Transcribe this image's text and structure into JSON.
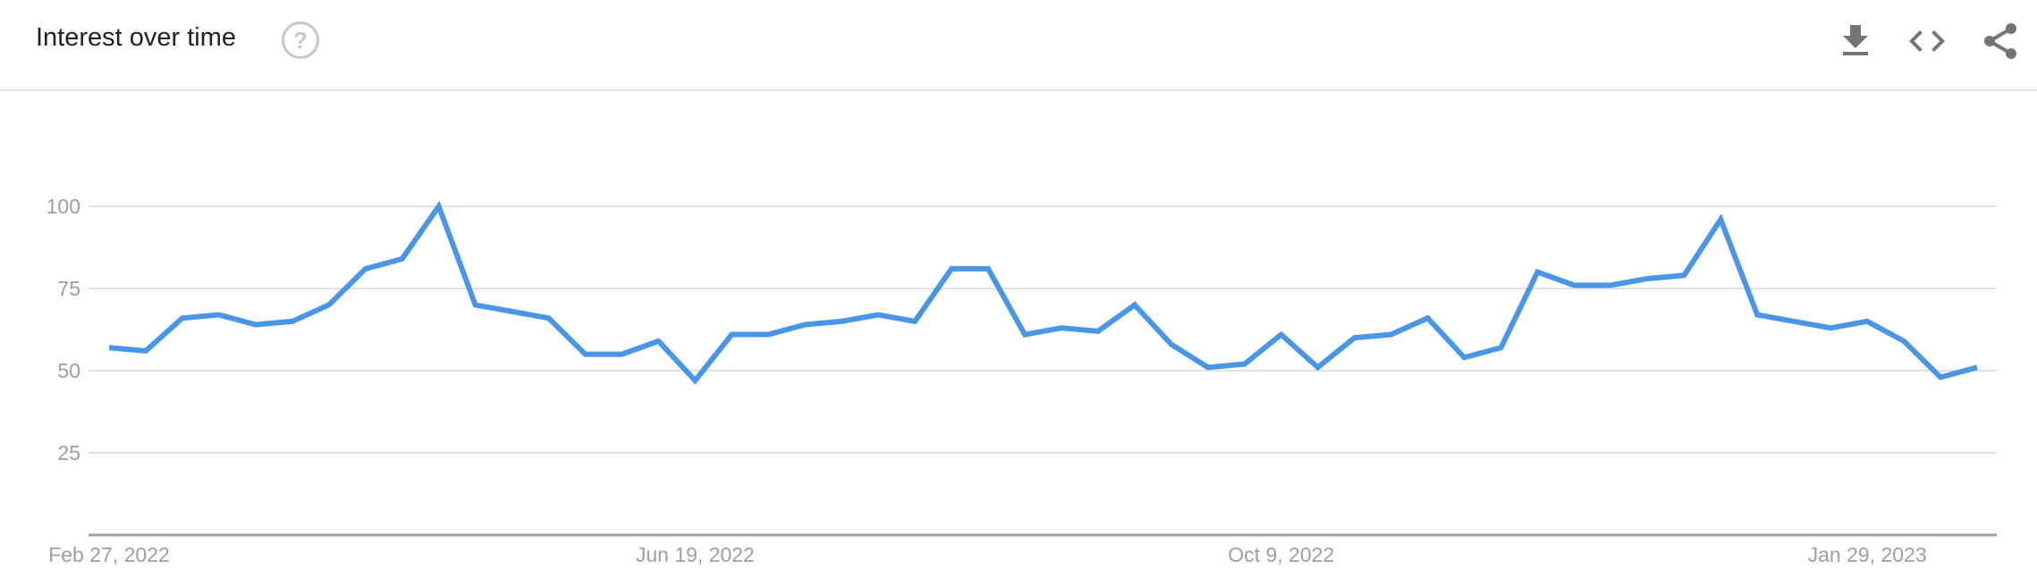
{
  "header": {
    "title": "Interest over time",
    "help_icon": "help-circle-icon",
    "actions": [
      {
        "name": "download-csv",
        "icon": "download-icon"
      },
      {
        "name": "embed",
        "icon": "code-icon"
      },
      {
        "name": "share",
        "icon": "share-icon"
      }
    ]
  },
  "colors": {
    "line": "#4a96e6",
    "grid": "#e0e0e0",
    "axis": "#9e9e9e",
    "text": "#212121",
    "icon": "#757575"
  },
  "chart_data": {
    "type": "line",
    "title": "",
    "xlabel": "",
    "ylabel": "",
    "ylim": [
      0,
      100
    ],
    "yticks": [
      25,
      50,
      75,
      100
    ],
    "grid": true,
    "x_start": "2022-02-27",
    "x_step": "1 week",
    "xtick_labels": [
      {
        "label": "Feb 27, 2022",
        "index": 0
      },
      {
        "label": "Jun 19, 2022",
        "index": 16
      },
      {
        "label": "Oct 9, 2022",
        "index": 32
      },
      {
        "label": "Jan 29, 2023",
        "index": 48
      }
    ],
    "series": [
      {
        "values": [
          57,
          56,
          66,
          67,
          64,
          65,
          70,
          81,
          84,
          100,
          70,
          68,
          66,
          55,
          55,
          59,
          47,
          61,
          61,
          64,
          65,
          67,
          65,
          81,
          81,
          61,
          63,
          62,
          70,
          58,
          51,
          52,
          61,
          51,
          60,
          61,
          66,
          54,
          57,
          80,
          76,
          76,
          78,
          79,
          96,
          67,
          65,
          63,
          65,
          59,
          48,
          51
        ]
      }
    ]
  }
}
